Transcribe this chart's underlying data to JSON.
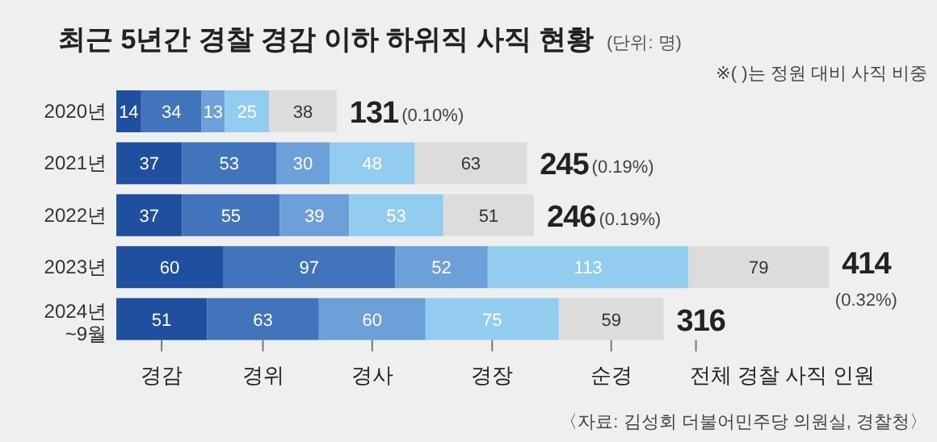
{
  "chart_data": {
    "type": "bar",
    "orientation": "horizontal",
    "stacked": true,
    "data_labels": true,
    "legend": "bottom",
    "title": "최근 5년간 경찰 경감 이하 하위직 사직 현황",
    "subtitle": "(단위: 명)",
    "categories": [
      "2020년",
      "2021년",
      "2022년",
      "2023년",
      "2024년 ~9월"
    ],
    "series": [
      {
        "name": "경감",
        "color": "#1f4f9e",
        "values": [
          14,
          37,
          37,
          60,
          51
        ]
      },
      {
        "name": "경위",
        "color": "#4174bb",
        "values": [
          34,
          53,
          55,
          97,
          63
        ]
      },
      {
        "name": "경사",
        "color": "#6d9fd8",
        "values": [
          13,
          30,
          39,
          52,
          60
        ]
      },
      {
        "name": "경장",
        "color": "#92cdf0",
        "values": [
          25,
          48,
          53,
          113,
          75
        ]
      },
      {
        "name": "순경",
        "color": "#dcdcdc",
        "values": [
          38,
          63,
          51,
          79,
          59
        ]
      }
    ],
    "annotations": [
      "131",
      "(0.10%)",
      "245",
      "(0.19%)",
      "246",
      "(0.19%)",
      "414",
      "(0.32%)",
      "316",
      "전체 경찰 사직 인원",
      "※( )는 정원 대비 사직 비중",
      "〈자료: 김성회 더불어민주당 의원실, 경찰청〉"
    ]
  }
}
